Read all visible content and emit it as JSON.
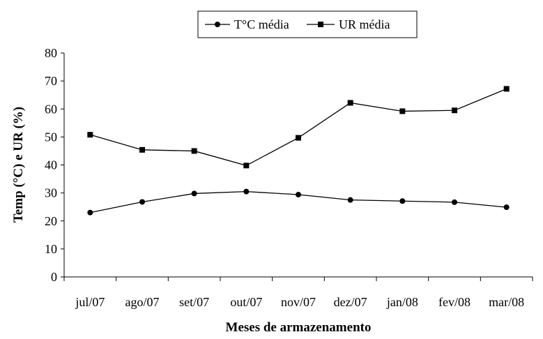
{
  "chart_data": {
    "type": "line",
    "categories": [
      "jul/07",
      "ago/07",
      "set/07",
      "out/07",
      "nov/07",
      "dez/07",
      "jan/08",
      "fev/08",
      "mar/08"
    ],
    "series": [
      {
        "name": "T°C média",
        "marker": "circle",
        "values": [
          23.0,
          26.8,
          29.8,
          30.5,
          29.4,
          27.5,
          27.1,
          26.7,
          24.9
        ]
      },
      {
        "name": "UR média",
        "marker": "square",
        "values": [
          50.8,
          45.4,
          45.0,
          39.8,
          49.7,
          62.2,
          59.2,
          59.5,
          67.2
        ]
      }
    ],
    "xlabel": "Meses de armazenamento",
    "ylabel": "Temp (°C) e UR (%)",
    "ylim": [
      0,
      80
    ],
    "yticks": [
      0,
      10,
      20,
      30,
      40,
      50,
      60,
      70,
      80
    ],
    "grid": false,
    "legend": "top"
  }
}
